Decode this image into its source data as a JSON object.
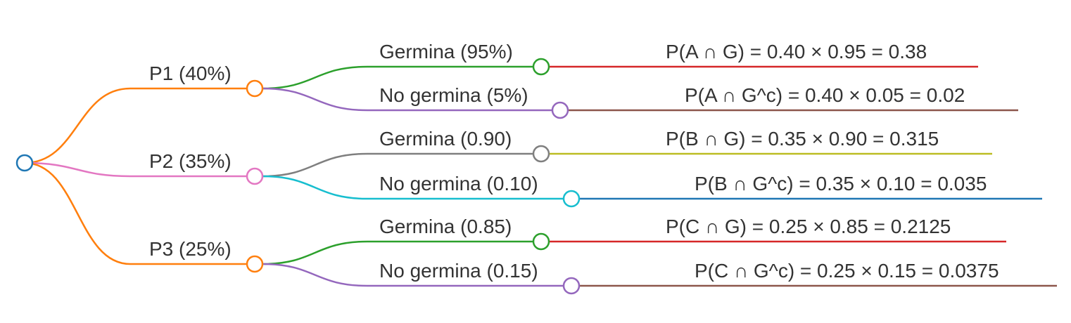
{
  "colors": {
    "root": "#1f77b4",
    "orange": "#ff7f0e",
    "pink": "#e377c2",
    "green": "#2ca02c",
    "purple": "#9467bd",
    "gray": "#7f7f7f",
    "cyan": "#17becf",
    "red": "#d62728",
    "brown": "#8c564b",
    "olive": "#bcbd22",
    "blue": "#1f77b4"
  },
  "branches": [
    {
      "label": "P1 (40%)",
      "color": "orange",
      "outcomes": [
        {
          "label": "Germina (95%)",
          "color": "green",
          "result": "P(A ∩ G) = 0.40 × 0.95 = 0.38",
          "result_color": "red"
        },
        {
          "label": "No germina (5%)",
          "color": "purple",
          "result": "P(A ∩ G^c) = 0.40 × 0.05 = 0.02",
          "result_color": "brown"
        }
      ]
    },
    {
      "label": "P2 (35%)",
      "color": "pink",
      "outcomes": [
        {
          "label": "Germina (0.90)",
          "color": "gray",
          "result": "P(B ∩ G) = 0.35 × 0.90 = 0.315",
          "result_color": "olive"
        },
        {
          "label": "No germina (0.10)",
          "color": "cyan",
          "result": "P(B ∩ G^c) = 0.35 × 0.10 = 0.035",
          "result_color": "blue"
        }
      ]
    },
    {
      "label": "P3 (25%)",
      "color": "orange",
      "outcomes": [
        {
          "label": "Germina (0.85)",
          "color": "green",
          "result": "P(C ∩ G) = 0.25 × 0.85 = 0.2125",
          "result_color": "red"
        },
        {
          "label": "No germina (0.15)",
          "color": "purple",
          "result": "P(C ∩ G^c) = 0.25 × 0.15 = 0.0375",
          "result_color": "brown"
        }
      ]
    }
  ]
}
